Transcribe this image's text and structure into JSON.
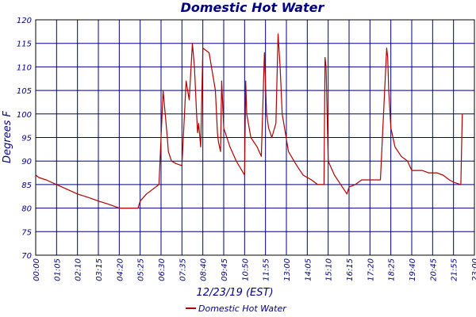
{
  "chart_data": {
    "type": "line",
    "title": "Domestic Hot Water",
    "xlabel": "12/23/19 (EST)",
    "ylabel": "Degrees F",
    "ylim": [
      70,
      120
    ],
    "ytick_labels": [
      "70",
      "75",
      "80",
      "85",
      "90",
      "95",
      "100",
      "105",
      "110",
      "115",
      "120"
    ],
    "xtick_labels": [
      "00:00",
      "01:05",
      "02:10",
      "03:15",
      "04:20",
      "05:25",
      "06:30",
      "07:35",
      "08:40",
      "09:45",
      "10:50",
      "11:55",
      "13:00",
      "14:05",
      "15:10",
      "16:15",
      "17:20",
      "18:25",
      "19:40",
      "20:45",
      "21:55",
      "23:00"
    ],
    "grid": true,
    "legend_position": "bottom-left",
    "series": [
      {
        "name": "Domestic Hot Water",
        "color": "#b00000",
        "x": [
          0,
          0.15,
          0.5,
          1,
          1.5,
          2,
          2.5,
          3,
          3.5,
          4,
          4.2,
          4.6,
          4.9,
          5.0,
          5.3,
          5.6,
          5.9,
          6.1,
          6.3,
          6.35,
          6.5,
          6.7,
          7.0,
          7.2,
          7.35,
          7.5,
          7.6,
          7.7,
          7.75,
          7.8,
          7.9,
          8.0,
          8.3,
          8.6,
          8.7,
          8.75,
          8.8,
          8.85,
          8.9,
          9.0,
          9.3,
          9.6,
          10.0,
          10.05,
          10.1,
          10.3,
          10.6,
          10.8,
          10.95,
          11.05,
          11.15,
          11.3,
          11.5,
          11.6,
          11.7,
          11.8,
          11.95,
          12.1,
          12.5,
          12.8,
          13.2,
          13.5,
          13.8,
          13.85,
          13.9,
          14.0,
          14.3,
          14.6,
          14.9,
          15.0,
          15.3,
          15.6,
          16.0,
          16.5,
          16.8,
          16.85,
          16.9,
          17.0,
          17.2,
          17.5,
          17.8,
          18.0,
          18.5,
          18.8,
          19.2,
          19.5,
          19.8,
          20.0,
          20.35,
          20.42
        ],
        "y": [
          87,
          86.5,
          86,
          85,
          84,
          83,
          82.3,
          81.5,
          80.8,
          80,
          80,
          80,
          80,
          81.5,
          83,
          84,
          85,
          105,
          95,
          92,
          90,
          89.5,
          89,
          107,
          103,
          115,
          110,
          100,
          96,
          98,
          93,
          114,
          113,
          105,
          96,
          94,
          93,
          92,
          107,
          97,
          93,
          90,
          87,
          107,
          100,
          95,
          93,
          91,
          113,
          100,
          97,
          95,
          98,
          117,
          110,
          100,
          96,
          92,
          89,
          87,
          86,
          85,
          85,
          112,
          110,
          90,
          87,
          85,
          83,
          84.5,
          85,
          86,
          86,
          86,
          114,
          112,
          105,
          97,
          93,
          91,
          90,
          88,
          88,
          87.5,
          87.5,
          87,
          86,
          85.5,
          85,
          100
        ]
      }
    ]
  }
}
